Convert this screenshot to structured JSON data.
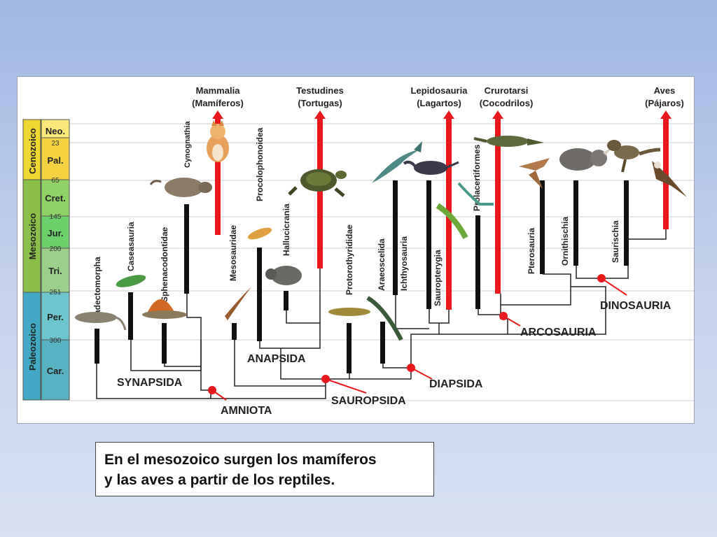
{
  "timescale": {
    "eras": [
      {
        "name": "Cenozoico",
        "color": "#f0d630"
      },
      {
        "name": "Mesozoico",
        "color": "#8ac04a"
      },
      {
        "name": "Paleozoico",
        "color": "#42a8c4"
      }
    ],
    "periods": [
      {
        "name": "Neo.",
        "color": "#fbe87a"
      },
      {
        "name": "Pal.",
        "color": "#f6d243"
      },
      {
        "name": "Cret.",
        "color": "#8fd268"
      },
      {
        "name": "Jur.",
        "color": "#6ed06c"
      },
      {
        "name": "Tri.",
        "color": "#9ad08a"
      },
      {
        "name": "Per.",
        "color": "#6ec4cf"
      },
      {
        "name": "Car.",
        "color": "#58b2c2"
      }
    ],
    "boundaries": [
      "23",
      "65",
      "145",
      "200",
      "251",
      "300"
    ]
  },
  "top_groups": [
    {
      "line1": "Mammalia",
      "line2": "(Mamíferos)"
    },
    {
      "line1": "Testudines",
      "line2": "(Tortugas)"
    },
    {
      "line1": "Lepidosauria",
      "line2": "(Lagartos)"
    },
    {
      "line1": "Crurotarsi",
      "line2": "(Cocodrilos)"
    },
    {
      "line1": "Aves",
      "line2": "(Pájaros)"
    }
  ],
  "taxa": [
    "Diadectomorpha",
    "Caseasauria",
    "Sphenacodontidae",
    "Cynognathia",
    "Mesosauridae",
    "Procolophonoidea",
    "Hallucicrania",
    "Protorothyrididae",
    "Araeoscelida",
    "Ichthyosauria",
    "Sauropterygia",
    "Prolacertiformes",
    "Pterosauria",
    "Ornithischia",
    "Saurischia"
  ],
  "clades": {
    "amniota": "AMNIOTA",
    "synapsida": "SYNAPSIDA",
    "sauropsida": "SAUROPSIDA",
    "anapsida": "ANAPSIDA",
    "diapsida": "DIAPSIDA",
    "arcosauria": "ARCOSAURIA",
    "dinosauria": "DINOSAURIA"
  },
  "colors": {
    "arrow": "#e8191c",
    "node": "#e8191c",
    "branch": "#111111"
  },
  "caption": {
    "line1": "En el mesozoico surgen los mamíferos",
    "line2": "y las aves a partir de los reptiles."
  }
}
